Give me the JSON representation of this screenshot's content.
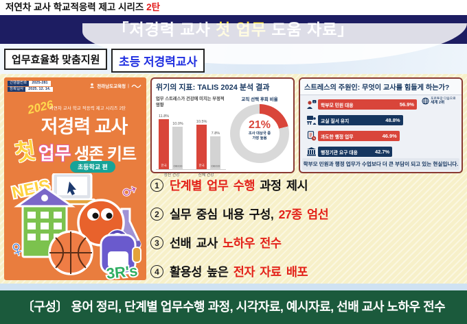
{
  "colors": {
    "red": "#d9453a",
    "navy": "#16365f",
    "gray": "#d9d9d9",
    "banner_navy": "#1d1d62",
    "footer_green": "#1b5a3c",
    "poster_orange": "#e97d3e",
    "highlight_red": "#e32119",
    "yellow": "#ffe33e"
  },
  "header": {
    "series_prefix": "저연차 교사 학교적응력 제고 시리즈 ",
    "series_badge": "2탄",
    "title_pre": "「저경력 교사 ",
    "title_highlight": "첫 업무",
    "title_post": " 도움 자료」"
  },
  "tags": {
    "tag1": "업무효율화 맞춤지원",
    "tag2": "초등 저경력교사"
  },
  "poster": {
    "pub_no_label": "간행물번호",
    "pub_no": "2025-281",
    "reg_label": "등록일자",
    "reg_date": "2025. 12. 14.",
    "org": "전라남도교육청",
    "year": "2026",
    "series_line": "저연차 교사 학교 적응력 제고 시리즈 2탄",
    "title_line1": "저경력 교사",
    "title_first": "첫",
    "title_second": "업무",
    "title_rest": " 생존 키트",
    "badge": "초등학교 편",
    "sticker_neis": "NEIS",
    "sticker_3rs": "3R's"
  },
  "talis_panel": {
    "title": "위기의 지표: TALIS 2024 분석 결과",
    "bar_chart_title": "업무 스트레스가 건강에 미치는 부정적 영향",
    "bars": [
      {
        "pct": "11.8%",
        "name": "한국"
      },
      {
        "pct": "10.0%",
        "name": "OECD"
      },
      {
        "pct": "10.5%",
        "name": "한국"
      },
      {
        "pct": "7.8%",
        "name": "OECD"
      }
    ],
    "group1": "정신 건강",
    "group2": "신체 건강",
    "donut_title": "교직 선택 후회 비율",
    "donut_value": "21%",
    "donut_note1": "조사 대상국 중",
    "donut_note2": "가장 높음"
  },
  "stress_panel": {
    "title": "스트레스의 주원인: 무엇이 교사를 힘들게 하는가?",
    "rows": [
      {
        "label": "학부모 민원 대응",
        "pct": "56.9%"
      },
      {
        "label": "교실 질서 유지",
        "pct": "48.8%"
      },
      {
        "label": "과도한 행정 업무",
        "pct": "46.9%"
      },
      {
        "label": "행정기관 요구 대응",
        "pct": "42.7%"
      }
    ],
    "badge_line1": "포르투갈 다음으로",
    "badge_line2": "세계 2위",
    "ticks": [
      "0%",
      "20%",
      "40%",
      "60%"
    ],
    "caption": "학부모 민원과 행정 업무가 수업보다 더 큰 부담이 되고 있는 현실입니다."
  },
  "features": [
    {
      "num": "1",
      "pre": "",
      "red": "단계별 업무 수행",
      "post": " 과정 제시"
    },
    {
      "num": "2",
      "pre": "실무 중심 내용 구성, ",
      "red": "27종 엄선",
      "post": ""
    },
    {
      "num": "3",
      "pre": "선배 교사 ",
      "red": "노하우 전수",
      "post": ""
    },
    {
      "num": "4",
      "pre": "활용성 높은 ",
      "red": "전자 자료 배포",
      "post": ""
    }
  ],
  "footer": {
    "text": "〔구성〕 용어 정리, 단계별 업무수행 과정, 시각자료, 예시자료, 선배 교사 노하우 전수"
  },
  "chart_data": [
    {
      "type": "bar",
      "title": "업무 스트레스가 건강에 미치는 부정적 영향",
      "categories": [
        "정신 건강",
        "신체 건강"
      ],
      "series": [
        {
          "name": "한국",
          "values": [
            11.8,
            10.5
          ]
        },
        {
          "name": "OECD",
          "values": [
            10.0,
            7.8
          ]
        }
      ],
      "unit": "%",
      "ylim": [
        0,
        12
      ],
      "grid": false,
      "legend_position": "in-bar"
    },
    {
      "type": "pie",
      "title": "교직 선택 후회 비율",
      "values": [
        {
          "label": "후회 비율",
          "value": 21
        },
        {
          "label": "기타",
          "value": 79
        }
      ],
      "center_label": "21%",
      "annotation": "조사 대상국 중 가장 높음"
    },
    {
      "type": "bar",
      "title": "스트레스의 주원인: 무엇이 교사를 힘들게 하는가?",
      "categories": [
        "학부모 민원 대응",
        "교실 질서 유지",
        "과도한 행정 업무",
        "행정기관 요구 대응"
      ],
      "values": [
        56.9,
        48.8,
        46.9,
        42.7
      ],
      "unit": "%",
      "xlim": [
        0,
        60
      ],
      "ticks": [
        "0%",
        "20%",
        "40%",
        "60%"
      ],
      "annotation": "학부모 민원 대응: 포르투갈 다음으로 세계 2위",
      "caption": "학부모 민원과 행정 업무가 수업보다 더 큰 부담이 되고 있는 현실입니다."
    }
  ]
}
